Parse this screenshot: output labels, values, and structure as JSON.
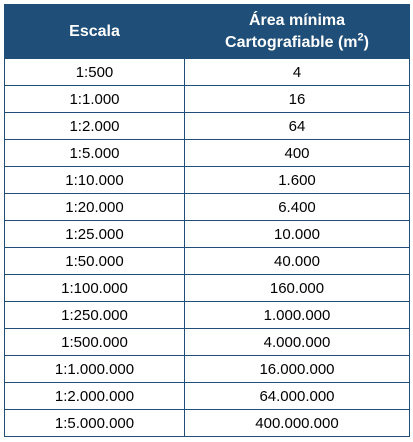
{
  "table": {
    "header": {
      "col1": "Escala",
      "col2_line1": "Área mínima",
      "col2_line2_prefix": "Cartografiable (m",
      "col2_sup": "2",
      "col2_line2_suffix": ")"
    },
    "rows": [
      {
        "escala": "1:500",
        "area": "4"
      },
      {
        "escala": "1:1.000",
        "area": "16"
      },
      {
        "escala": "1:2.000",
        "area": "64"
      },
      {
        "escala": "1:5.000",
        "area": "400"
      },
      {
        "escala": "1:10.000",
        "area": "1.600"
      },
      {
        "escala": "1:20.000",
        "area": "6.400"
      },
      {
        "escala": "1:25.000",
        "area": "10.000"
      },
      {
        "escala": "1:50.000",
        "area": "40.000"
      },
      {
        "escala": "1:100.000",
        "area": "160.000"
      },
      {
        "escala": "1:250.000",
        "area": "1.000.000"
      },
      {
        "escala": "1:500.000",
        "area": "4.000.000"
      },
      {
        "escala": "1:1.000.000",
        "area": "16.000.000"
      },
      {
        "escala": "1:2.000.000",
        "area": "64.000.000"
      },
      {
        "escala": "1:5.000.000",
        "area": "400.000.000"
      }
    ]
  },
  "colors": {
    "header_bg": "#1f4e79",
    "header_text": "#ffffff",
    "border": "#1f4e79"
  }
}
